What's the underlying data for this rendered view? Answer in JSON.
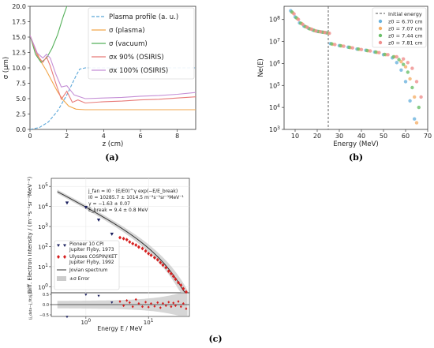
{
  "captions": {
    "a": "(a)",
    "b": "(b)",
    "c": "(c)"
  },
  "chart_data": [
    {
      "type": "line",
      "panel": "a",
      "xlabel": "z (cm)",
      "ylabel": "σ (μm)",
      "xlim": [
        0,
        9
      ],
      "ylim": [
        0,
        20
      ],
      "xticks": [
        "0",
        "2",
        "4",
        "6",
        "8"
      ],
      "yticks": [
        "0.0",
        "2.5",
        "5.0",
        "7.5",
        "10.0",
        "12.5",
        "15.0",
        "17.5",
        "20.0"
      ],
      "legend_position": "top-right",
      "series": [
        {
          "name": "Plasma profile (a. u.)",
          "color": "#5aa6d8",
          "dash": true,
          "x": [
            0,
            0.5,
            1,
            1.5,
            2,
            2.5,
            2.7,
            3,
            9
          ],
          "y": [
            0,
            0.3,
            1.2,
            3,
            5.6,
            8.7,
            9.8,
            10,
            10
          ]
        },
        {
          "name": "σ (plasma)",
          "color": "#f2a64a",
          "x": [
            0,
            0.3,
            0.6,
            0.9,
            1.2,
            1.5,
            1.8,
            2.1,
            2.5,
            3,
            9
          ],
          "y": [
            15.3,
            13,
            11,
            9.5,
            7.8,
            6.1,
            4.8,
            3.8,
            3.3,
            3.2,
            3.2
          ]
        },
        {
          "name": "σ (vacuum)",
          "color": "#55b05a",
          "x": [
            0,
            0.3,
            0.6,
            0.9,
            1.2,
            1.5,
            1.8,
            2.0
          ],
          "y": [
            15.3,
            12.2,
            10.9,
            11.6,
            13.2,
            15.4,
            18.3,
            20
          ]
        },
        {
          "name": "σx 90% (OSIRIS)",
          "color": "#e87a78",
          "x": [
            0,
            0.4,
            0.7,
            0.9,
            1.1,
            1.4,
            1.7,
            2.0,
            2.3,
            2.6,
            3.0,
            4,
            5,
            6,
            7,
            8,
            9
          ],
          "y": [
            15.3,
            12.0,
            10.9,
            11.8,
            10.3,
            7.5,
            4.9,
            6.2,
            4.4,
            4.8,
            4.3,
            4.5,
            4.6,
            4.8,
            4.9,
            5.1,
            5.3
          ]
        },
        {
          "name": "σx 100% (OSIRIS)",
          "color": "#c58fd6",
          "x": [
            0,
            0.4,
            0.7,
            0.9,
            1.1,
            1.4,
            1.7,
            2.0,
            2.4,
            3,
            4,
            5,
            6,
            7,
            8,
            9
          ],
          "y": [
            15.3,
            12.4,
            11.6,
            12.2,
            11.6,
            9.0,
            6.9,
            7.1,
            5.6,
            5.0,
            5.1,
            5.2,
            5.4,
            5.5,
            5.7,
            6.0
          ]
        }
      ]
    },
    {
      "type": "scatter",
      "panel": "b",
      "xlabel": "Energy (MeV)",
      "ylabel": "Ne(E)",
      "xlim": [
        5,
        70
      ],
      "ylim_log10": [
        3,
        8.6
      ],
      "xticks": [
        "10",
        "20",
        "30",
        "40",
        "50",
        "60",
        "70"
      ],
      "yticks": [
        "10^3",
        "10^4",
        "10^5",
        "10^6",
        "10^7",
        "10^8"
      ],
      "vline": {
        "x": 25,
        "label": "Initial energy"
      },
      "legend_position": "top-right",
      "series": [
        {
          "name": "z0 = 6.70 cm",
          "color": "#6bb3dd",
          "x": [
            8,
            10,
            12,
            14,
            16,
            18,
            20,
            22,
            24,
            26,
            30,
            34,
            38,
            42,
            46,
            50,
            54,
            56,
            58,
            60,
            62,
            64
          ],
          "y": [
            250000000.0,
            130000000.0,
            70000000.0,
            50000000.0,
            40000000.0,
            33000000.0,
            29000000.0,
            27000000.0,
            25000000.0,
            8000000.0,
            6500000.0,
            5500000.0,
            4500000.0,
            4000000.0,
            3300000.0,
            2500000.0,
            1800000.0,
            1100000.0,
            500000.0,
            150000.0,
            20000.0,
            3000.0
          ]
        },
        {
          "name": "z0 = 7.07 cm",
          "color": "#f5b06a",
          "x": [
            9,
            11,
            13,
            15,
            17,
            19,
            21,
            23,
            25,
            27,
            31,
            35,
            39,
            43,
            47,
            51,
            55,
            58,
            60,
            62,
            64,
            65
          ],
          "y": [
            200000000.0,
            110000000.0,
            65000000.0,
            46000000.0,
            37000000.0,
            31000000.0,
            28000000.0,
            26000000.0,
            24000000.0,
            7500000.0,
            6300000.0,
            5300000.0,
            4400000.0,
            3800000.0,
            3200000.0,
            2500000.0,
            2000000.0,
            1200000.0,
            700000.0,
            200000.0,
            30000.0,
            2000.0
          ]
        },
        {
          "name": "z0 = 7.44 cm",
          "color": "#6cbf6a",
          "x": [
            8.5,
            10.5,
            12.5,
            14.5,
            16.5,
            18.5,
            20.5,
            22.5,
            24.5,
            26.5,
            30.5,
            34.5,
            38.5,
            42.5,
            46.5,
            50.5,
            54.5,
            57,
            59,
            61,
            63,
            66
          ],
          "y": [
            220000000.0,
            120000000.0,
            68000000.0,
            48000000.0,
            38000000.0,
            32000000.0,
            28500000.0,
            26500000.0,
            24500000.0,
            7800000.0,
            6400000.0,
            5400000.0,
            4500000.0,
            3900000.0,
            3300000.0,
            2600000.0,
            2000000.0,
            1500000.0,
            900000.0,
            400000.0,
            80000.0,
            10000.0
          ]
        },
        {
          "name": "z0 = 7.81 cm",
          "color": "#ef8f8d",
          "x": [
            9.5,
            11.5,
            13.5,
            15.5,
            17.5,
            19.5,
            21.5,
            23.5,
            25.5,
            28,
            32,
            36,
            40,
            44,
            48,
            52,
            56,
            59,
            61,
            63,
            65,
            67
          ],
          "y": [
            180000000.0,
            100000000.0,
            60000000.0,
            44000000.0,
            36000000.0,
            30000000.0,
            27500000.0,
            25500000.0,
            23500000.0,
            7200000.0,
            6100000.0,
            5100000.0,
            4300000.0,
            3700000.0,
            3100000.0,
            2500000.0,
            2000000.0,
            1600000.0,
            1100000.0,
            600000.0,
            150000.0,
            30000.0
          ]
        }
      ]
    },
    {
      "type": "scatter",
      "panel": "c",
      "xlabel": "Energy E / MeV",
      "ylabel": "Diff. Electron Intensity / (m⁻²s⁻¹sr⁻¹MeV⁻¹)",
      "residual_ylabel": "(j_data−j_fit)/j_fit",
      "xscale": "log",
      "ylim_log10": [
        -0.3,
        5.4
      ],
      "xticks": [
        "10^0",
        "10^1"
      ],
      "yticks": [
        "10^0",
        "10^1",
        "10^2",
        "10^3",
        "10^4",
        "10^5"
      ],
      "residual_yticks": [
        "0.5",
        "0.0",
        "−0.5"
      ],
      "annotation": {
        "equation": "j_fan = I0 · (E/E0)^γ exp(−E/E_break)",
        "I0": "I0 = 10285.7 ± 1014.5 m⁻²s⁻¹sr⁻¹MeV⁻¹",
        "gamma": "γ = −1.63 ± 0.07",
        "Ebreak": "E_break = 9.4 ± 0.8 MeV"
      },
      "legend_position": "lower-left",
      "series": [
        {
          "name": "Pioneer 10 CPI Jupiter Flyby, 1973",
          "color": "#1a1f5e",
          "marker": "triangle",
          "x": [
            0.5,
            1.0,
            1.6,
            2.6
          ],
          "y": [
            15000,
            9000,
            2100,
            420
          ]
        },
        {
          "name": "Ulysses COSPIN/KET Jupiter Flyby, 1992",
          "color": "#d62020",
          "marker": "diamond",
          "x": [
            3.5,
            4.0,
            4.5,
            5.0,
            5.6,
            6.3,
            7.0,
            8.0,
            9.0,
            10.0,
            11.0,
            12.5,
            14.0,
            15.5,
            17.0,
            19.0,
            21.0,
            23.0,
            25.0,
            27.0,
            30.0,
            33.0,
            36.0,
            40.0
          ],
          "y": [
            280,
            250,
            220,
            170,
            140,
            120,
            95,
            80,
            60,
            45,
            37,
            28,
            22,
            16,
            12,
            9,
            6,
            4.5,
            3.3,
            2.4,
            1.6,
            1.2,
            0.8,
            0.55
          ]
        },
        {
          "name": "Jovian spectrum",
          "color": "#333333",
          "line": true
        },
        {
          "name": "±σ Error",
          "color": "#cccccc",
          "band": true
        }
      ],
      "residuals": {
        "pioneer": [
          -0.6,
          0.48,
          0.42,
          0.1
        ],
        "ulysses": [
          0.15,
          -0.05,
          0.2,
          0.1,
          -0.1,
          0.25,
          0.05,
          -0.1,
          0.12,
          -0.12,
          0.05,
          -0.08,
          0.1,
          -0.15,
          0.06,
          -0.05,
          0.12,
          -0.1,
          0.08,
          -0.05,
          0.15,
          -0.1,
          0.05,
          -0.2
        ]
      }
    }
  ]
}
